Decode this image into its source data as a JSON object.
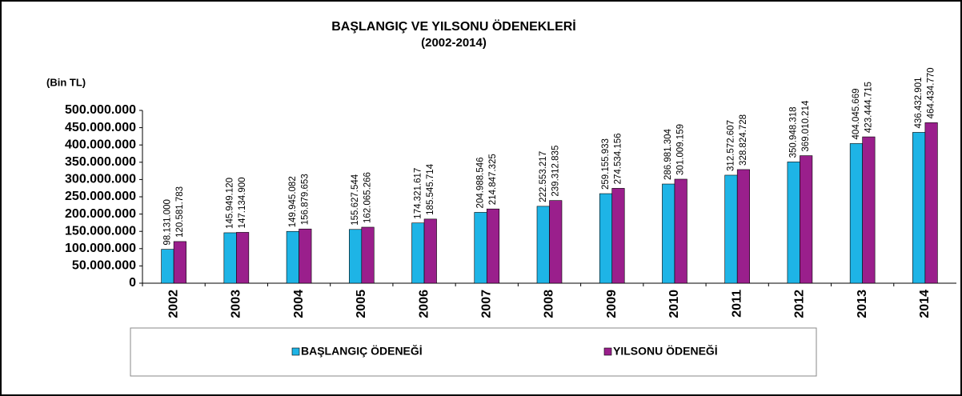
{
  "chart_data": {
    "type": "bar",
    "title": "BAŞLANGIÇ VE YILSONU ÖDENEKLERİ",
    "subtitle": "(2002-2014)",
    "y_label": "(Bin TL)",
    "categories": [
      "2002",
      "2003",
      "2004",
      "2005",
      "2006",
      "2007",
      "2008",
      "2009",
      "2010",
      "2011",
      "2012",
      "2013",
      "2014"
    ],
    "series": [
      {
        "name": "BAŞLANGIÇ ÖDENEĞİ",
        "color": "#1eb4e6",
        "values": [
          98131000,
          145949120,
          149945082,
          155627544,
          174321617,
          204988546,
          222553217,
          259155933,
          286981304,
          312572607,
          350948318,
          404045669,
          436432901
        ],
        "value_labels": [
          "98.131.000",
          "145.949.120",
          "149.945.082",
          "155.627.544",
          "174.321.617",
          "204.988.546",
          "222.553.217",
          "259.155.933",
          "286.981.304",
          "312.572.607",
          "350.948.318",
          "404.045.669",
          "436.432.901"
        ]
      },
      {
        "name": "YILSONU ÖDENEĞİ",
        "color": "#9a1f8c",
        "values": [
          120581783,
          147134900,
          156879653,
          162065266,
          185545714,
          214847325,
          239312835,
          274534156,
          301009159,
          328824728,
          369010214,
          423444715,
          464434770
        ],
        "value_labels": [
          "120.581.783",
          "147.134.900",
          "156.879.653",
          "162.065.266",
          "185.545.714",
          "214.847.325",
          "239.312.835",
          "274.534.156",
          "301.009.159",
          "328.824.728",
          "369.010.214",
          "423.444.715",
          "464.434.770"
        ]
      }
    ],
    "ylim": [
      0,
      500000000
    ],
    "yticks": [
      0,
      {
        "value": 50000000,
        "label": "50.000.000"
      },
      {
        "value": 100000000,
        "label": "100.000.000"
      },
      {
        "value": 150000000,
        "label": "150.000.000"
      },
      {
        "value": 200000000,
        "label": "200.000.000"
      },
      {
        "value": 250000000,
        "label": "250.000.000"
      },
      {
        "value": 300000000,
        "label": "300.000.000"
      },
      {
        "value": 350000000,
        "label": "350.000.000"
      },
      {
        "value": 400000000,
        "label": "400.000.000"
      },
      {
        "value": 450000000,
        "label": "450.000.000"
      },
      {
        "value": 500000000,
        "label": "500.000.000"
      }
    ],
    "legend": "bottom",
    "grid": false
  }
}
